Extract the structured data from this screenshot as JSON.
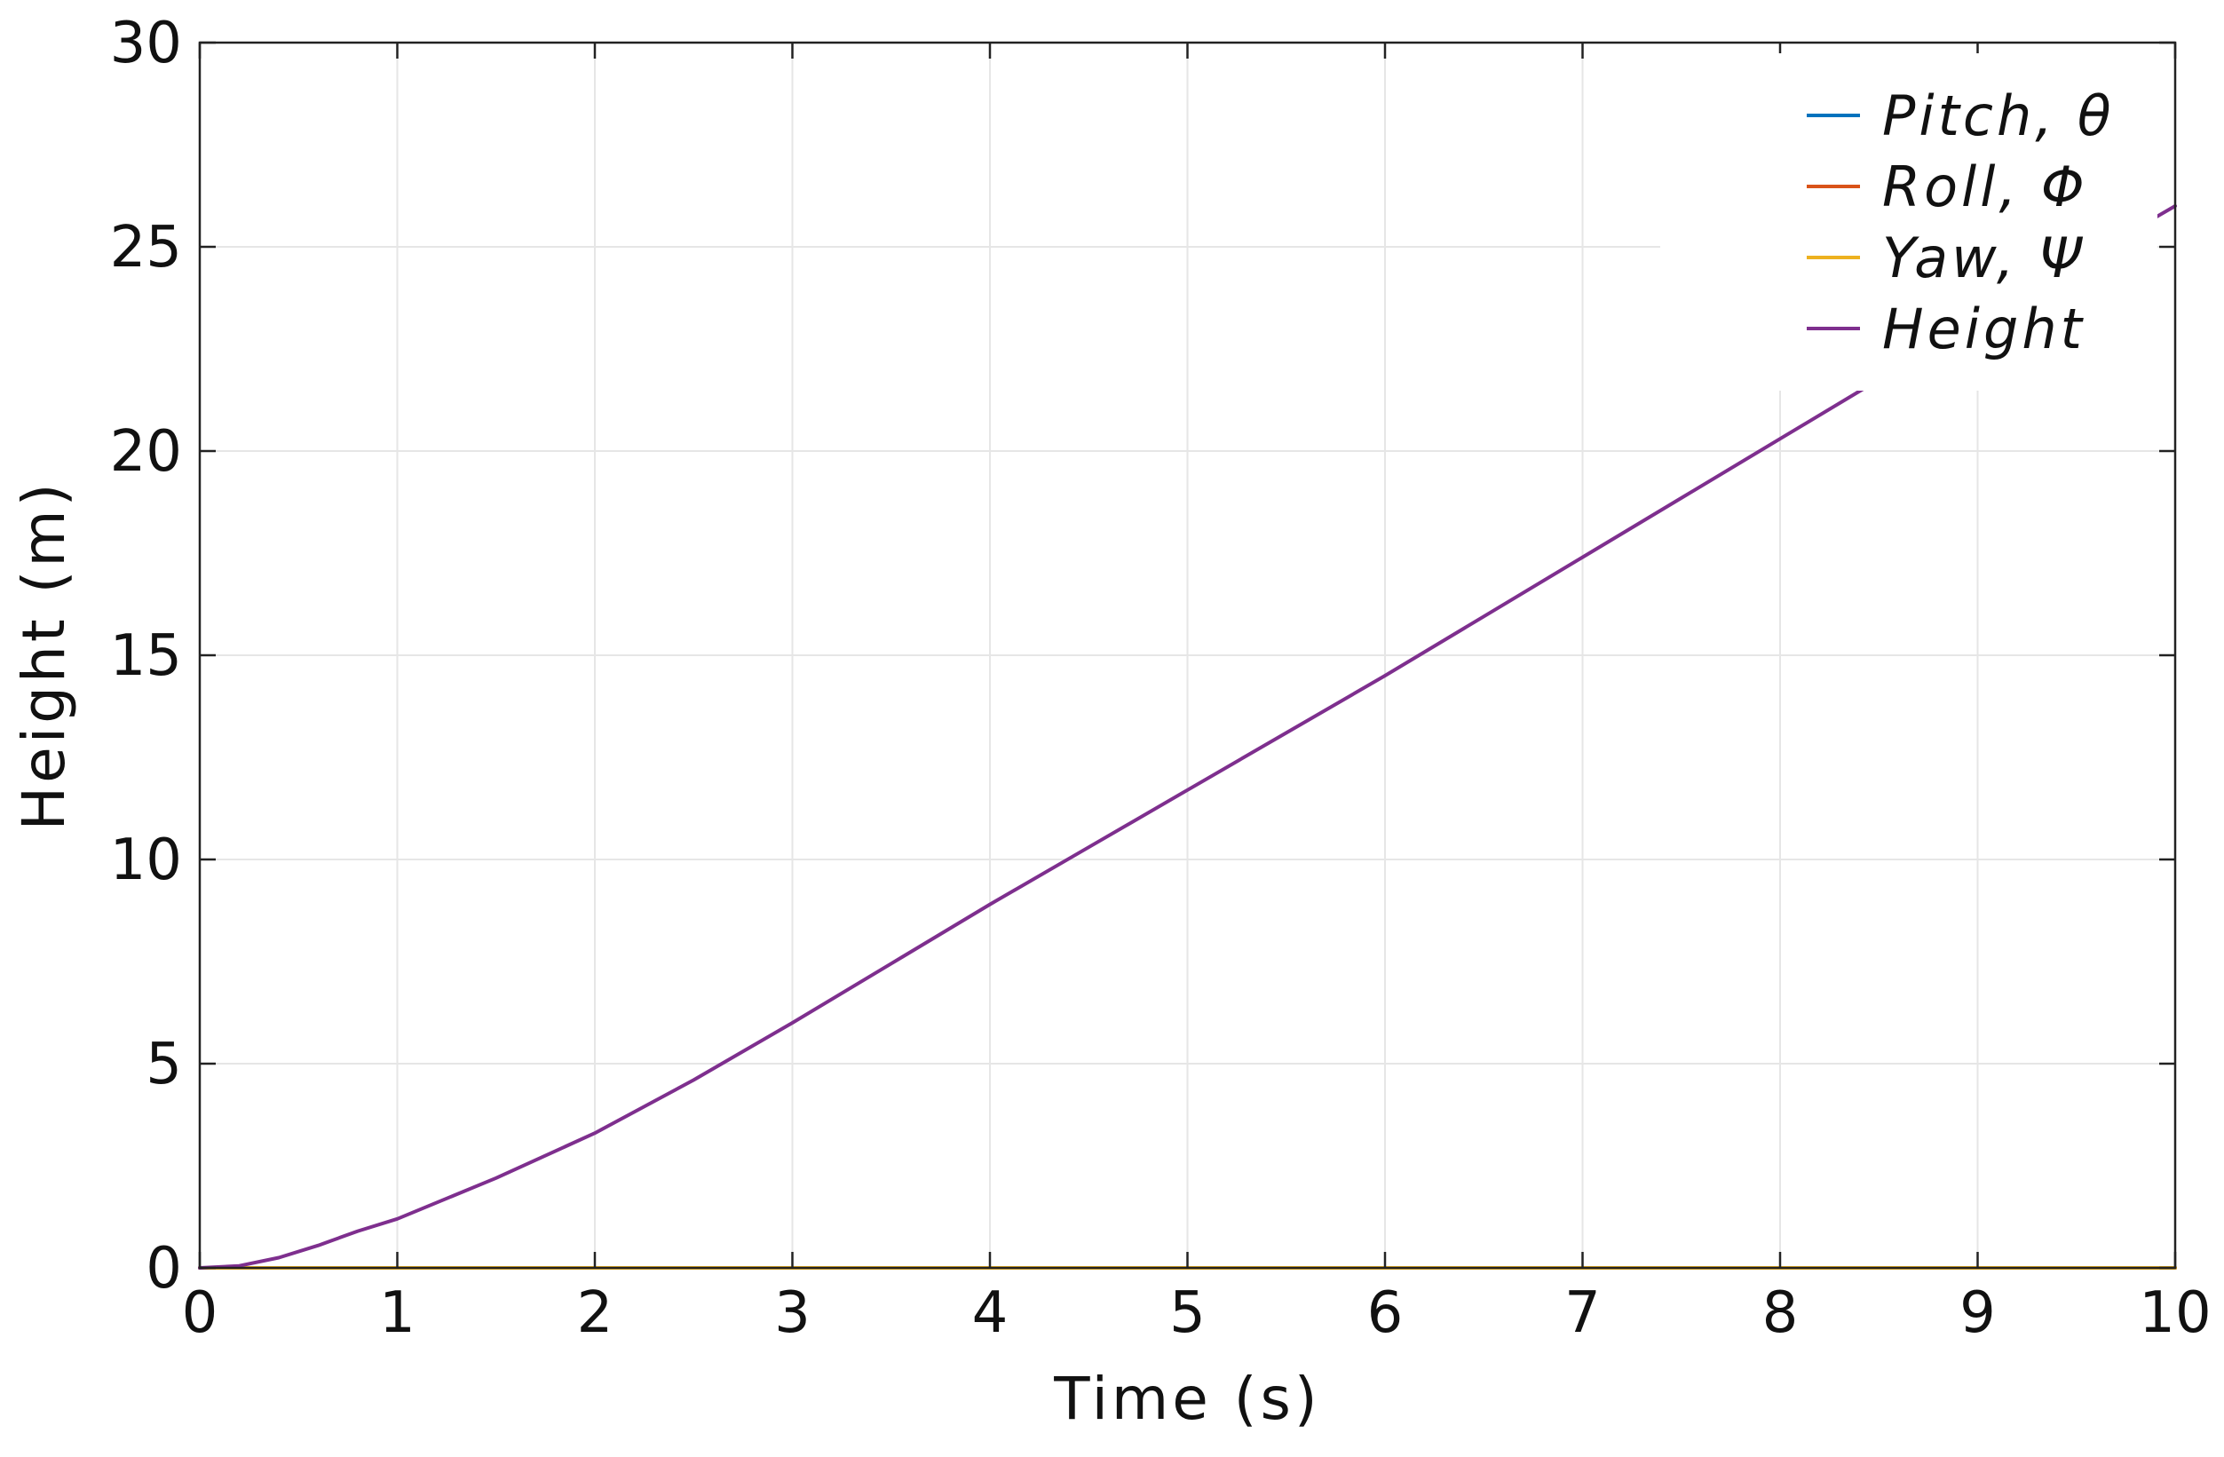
{
  "chart_data": {
    "type": "line",
    "title": "",
    "xlabel": "Time (s)",
    "ylabel": "Height (m)",
    "xlim": [
      0,
      10
    ],
    "ylim": [
      0,
      30
    ],
    "xticks": [
      "0",
      "1",
      "2",
      "3",
      "4",
      "5",
      "6",
      "7",
      "8",
      "9",
      "10"
    ],
    "yticks": [
      "0",
      "5",
      "10",
      "15",
      "20",
      "25",
      "30"
    ],
    "grid": true,
    "legend_position": "top-right",
    "series": [
      {
        "name": "Pitch, θ",
        "color": "#0072BD",
        "x": [
          0,
          10
        ],
        "y": [
          0,
          0
        ]
      },
      {
        "name": "Roll, Φ",
        "color": "#D95319",
        "x": [
          0,
          10
        ],
        "y": [
          0,
          0
        ]
      },
      {
        "name": "Yaw, Ψ",
        "color": "#EDB120",
        "x": [
          0,
          10
        ],
        "y": [
          0,
          0
        ]
      },
      {
        "name": "Height",
        "color": "#7E2F8E",
        "x": [
          0,
          0.2,
          0.4,
          0.6,
          0.8,
          1,
          1.5,
          2,
          2.5,
          3,
          3.5,
          4,
          4.5,
          5,
          5.5,
          6,
          6.5,
          7,
          7.5,
          8,
          8.5,
          9,
          9.5,
          10
        ],
        "y": [
          0,
          0.05,
          0.25,
          0.55,
          0.9,
          1.2,
          2.2,
          3.3,
          4.6,
          6.0,
          7.45,
          8.9,
          10.3,
          11.7,
          13.1,
          14.5,
          15.95,
          17.4,
          18.85,
          20.3,
          21.75,
          23.2,
          24.6,
          26.0
        ]
      }
    ]
  }
}
